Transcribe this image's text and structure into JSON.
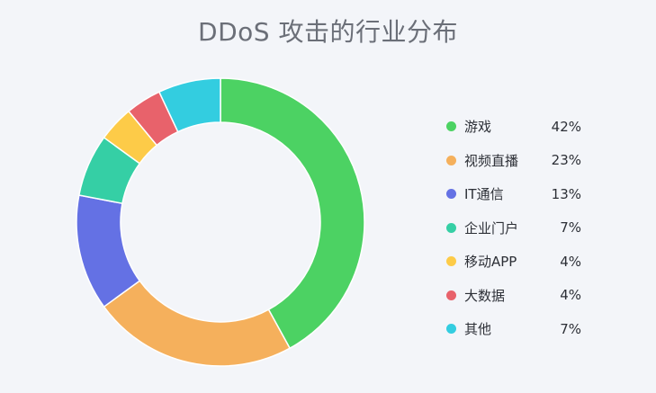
{
  "title": "DDoS 攻击的行业分布",
  "chart_data": {
    "type": "pie",
    "title": "DDoS 攻击的行业分布",
    "donut": true,
    "legend_position": "right",
    "unit": "%",
    "categories": [
      "游戏",
      "视频直播",
      "IT通信",
      "企业门户",
      "移动APP",
      "大数据",
      "其他"
    ],
    "values": [
      42,
      23,
      13,
      7,
      4,
      4,
      7
    ],
    "value_labels": [
      "42%",
      "23%",
      "13%",
      "7%",
      "4%",
      "4%",
      "7%"
    ],
    "colors": [
      "#4cd263",
      "#f5b05c",
      "#6471e4",
      "#35cfa5",
      "#fdcb48",
      "#e8626b",
      "#33cde0"
    ]
  }
}
